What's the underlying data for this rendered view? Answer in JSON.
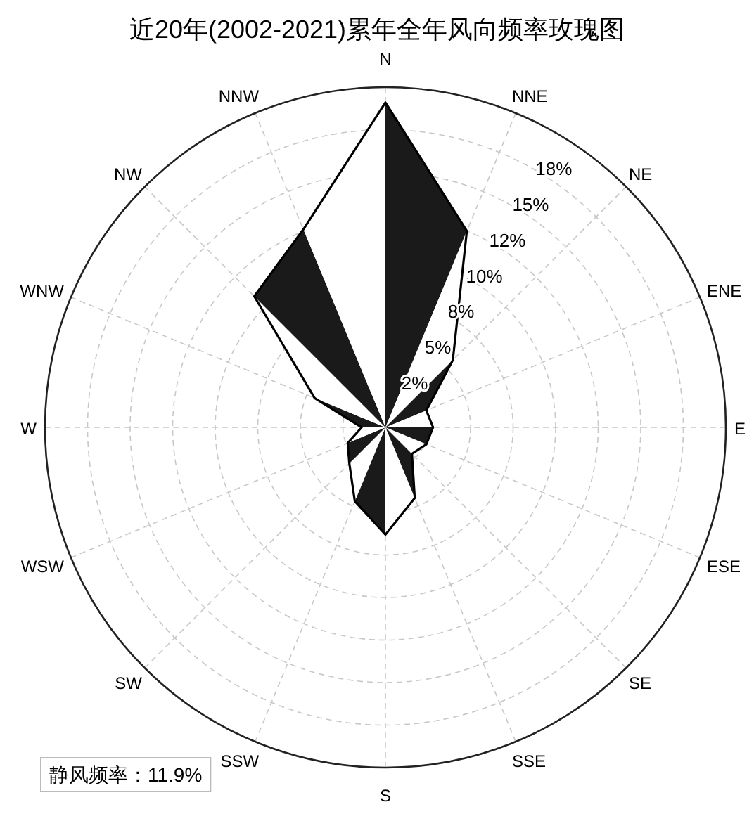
{
  "chart_data": {
    "type": "radar",
    "title": "近20年(2002-2021)累年全年风向频率玫瑰图",
    "categories": [
      "N",
      "NNE",
      "NE",
      "ENE",
      "E",
      "ESE",
      "SE",
      "SSE",
      "S",
      "SSW",
      "SW",
      "WSW",
      "W",
      "WNW",
      "NW",
      "NNW"
    ],
    "series": [
      {
        "color": "#000000",
        "colors": [
          "#1a1a1a",
          "#ffffff",
          "#1a1a1a",
          "#ffffff",
          "#1a1a1a",
          "#ffffff",
          "#1a1a1a",
          "#ffffff",
          "#1a1a1a",
          "#ffffff",
          "#1a1a1a",
          "#ffffff",
          "#1a1a1a",
          "#ffffff",
          "#1a1a1a",
          "#ffffff"
        ],
        "values": [
          19.1,
          12.5,
          5.6,
          2.6,
          2.8,
          2.6,
          2.2,
          4.5,
          6.3,
          4.7,
          3.0,
          2.4,
          1.4,
          4.5,
          10.9,
          12.6
        ]
      }
    ],
    "ylim": [
      0,
      20
    ],
    "yticks": [
      {
        "value": 2.5,
        "label": "2%"
      },
      {
        "value": 5,
        "label": "5%"
      },
      {
        "value": 7.5,
        "label": "8%"
      },
      {
        "value": 10,
        "label": "10%"
      },
      {
        "value": 12.5,
        "label": "12%"
      },
      {
        "value": 15,
        "label": "15%"
      },
      {
        "value": 17.5,
        "label": "18%"
      }
    ],
    "grid": true,
    "annotations": [
      "静风频率：11.9%"
    ]
  }
}
